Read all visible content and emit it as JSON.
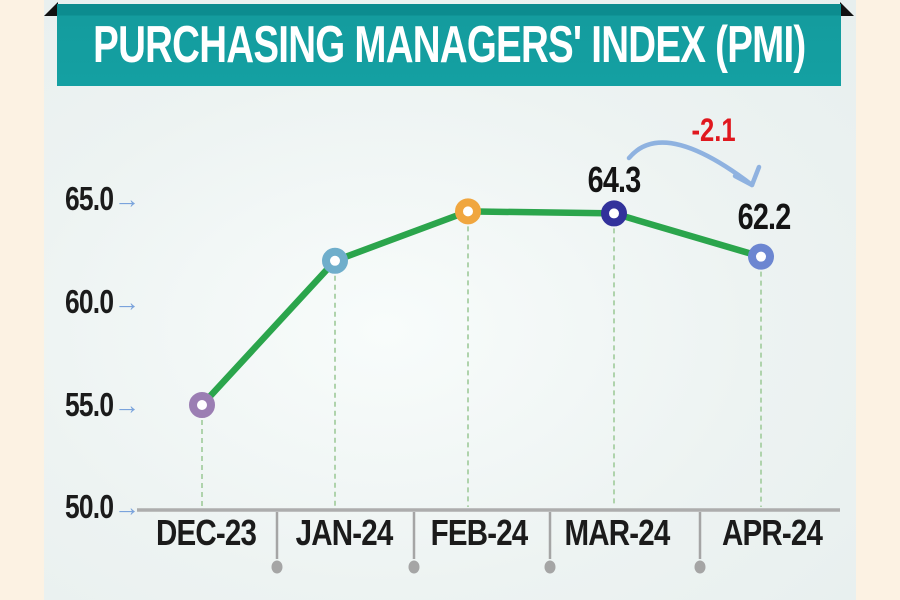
{
  "title": "PURCHASING MANAGERS' INDEX (PMI)",
  "chart_data": {
    "type": "line",
    "title": "PURCHASING MANAGERS' INDEX (PMI)",
    "categories": [
      "DEC-23",
      "JAN-24",
      "FEB-24",
      "MAR-24",
      "APR-24"
    ],
    "values": [
      55.0,
      62.0,
      64.4,
      64.3,
      62.2
    ],
    "point_labels": [
      "",
      "",
      "",
      "64.3",
      "62.2"
    ],
    "yticks": [
      "65.0",
      "60.0",
      "55.0",
      "50.0"
    ],
    "ytick_values": [
      65.0,
      60.0,
      55.0,
      50.0
    ],
    "ylim": [
      50.0,
      66.5
    ],
    "xlabel": "",
    "ylabel": "",
    "annotation": {
      "text": "-2.1"
    },
    "legend": "none",
    "grid": "dashed vertical drop lines from each point to x-axis",
    "line_color": "#2BA54C",
    "drop_line_color": "#AFD3AC",
    "point_colors": [
      "#9B7EB3",
      "#6FAECB",
      "#F0A63F",
      "#32329B",
      "#6C86D1"
    ],
    "annotation_color": "#E0181E",
    "arrow_color": "#8FB2E0",
    "axis_color": "#ADADAD"
  },
  "colors": {
    "page_bg": "#FCF2E3",
    "card_bg": "#EDF3F2",
    "banner_teal": "#14A0A2",
    "banner_teal_dark": "#0C8C8F",
    "title_text": "#FFFFFF",
    "label_text": "#1B1B1B",
    "tick_arrow_blue": "#7AA3DC",
    "ribbon_fold": "#111111"
  },
  "icons": {
    "tick_arrow": "→"
  }
}
